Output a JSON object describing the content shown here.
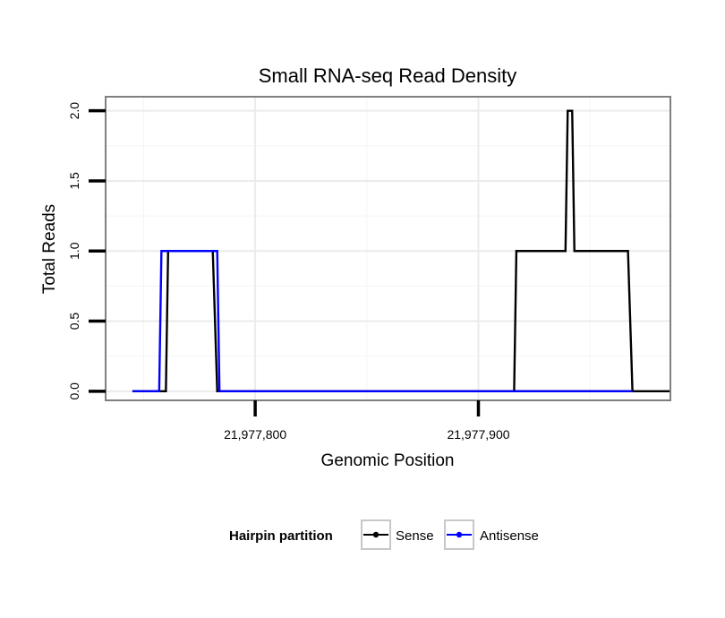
{
  "chart_data": {
    "type": "line",
    "title": "Small RNA-seq Read Density",
    "xlabel": "Genomic Position",
    "ylabel": "Total Reads",
    "xlim": [
      21977733,
      21977986
    ],
    "ylim": [
      -0.065,
      2.1
    ],
    "x_ticks": [
      21977800,
      21977900
    ],
    "x_tick_labels": [
      "21,977,800",
      "21,977,900"
    ],
    "x_grid_minor": [
      21977750,
      21977850,
      21977950
    ],
    "y_ticks": [
      0.0,
      0.5,
      1.0,
      1.5,
      2.0
    ],
    "y_tick_labels": [
      "0.0",
      "0.5",
      "1.0",
      "1.5",
      "2.0"
    ],
    "grid": true,
    "legend": {
      "title": "Hairpin partition",
      "position": "bottom"
    },
    "series": [
      {
        "name": "Sense",
        "color": "#000000",
        "x": [
          21977745,
          21977760,
          21977761,
          21977781,
          21977783,
          21977986,
          21977916,
          21977917,
          21977939,
          21977940,
          21977942,
          21977943,
          21977967,
          21977969,
          21977985
        ],
        "y": [
          0,
          0,
          1,
          1,
          0,
          0,
          0,
          1,
          1,
          2,
          2,
          1,
          1,
          0,
          0
        ]
      },
      {
        "name": "Antisense",
        "color": "#0000ff",
        "x": [
          21977745,
          21977757,
          21977758,
          21977783,
          21977784,
          21977786,
          21977916,
          21977969
        ],
        "y": [
          0,
          0,
          1,
          1,
          0,
          0,
          0,
          0
        ]
      }
    ]
  }
}
